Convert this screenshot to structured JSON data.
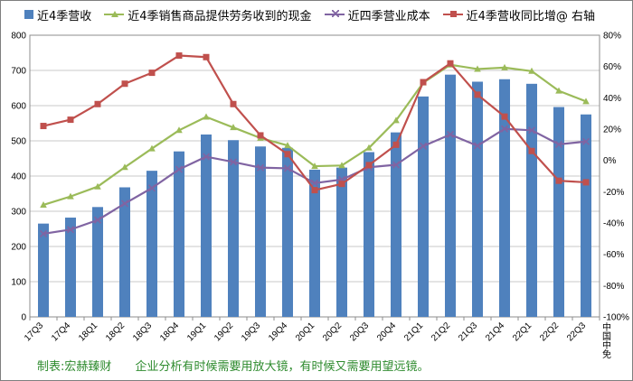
{
  "chart_data": {
    "type": "bar",
    "categories": [
      "17Q3",
      "17Q4",
      "18Q1",
      "18Q2",
      "18Q3",
      "18Q4",
      "19Q1",
      "19Q2",
      "19Q3",
      "19Q4",
      "20Q1",
      "20Q2",
      "20Q3",
      "20Q4",
      "21Q1",
      "21Q2",
      "21Q3",
      "21Q4",
      "22Q1",
      "22Q2",
      "22Q3"
    ],
    "ylim_left": [
      0,
      800
    ],
    "yticks_left": [
      0,
      100,
      200,
      300,
      400,
      500,
      600,
      700,
      800
    ],
    "ylim_right": [
      -100,
      80
    ],
    "yticks_right": [
      "-100%",
      "-80%",
      "-60%",
      "-40%",
      "-20%",
      "0%",
      "20%",
      "40%",
      "60%",
      "80%"
    ],
    "yticks_right_values": [
      -100,
      -80,
      -60,
      -40,
      -20,
      0,
      20,
      40,
      60,
      80
    ],
    "grid": true,
    "legend_position": "top",
    "series": [
      {
        "name": "近4季营收",
        "type": "bar",
        "axis": "left",
        "color": "#4f81bd",
        "values": [
          265,
          282,
          312,
          368,
          415,
          470,
          518,
          502,
          484,
          480,
          418,
          424,
          468,
          524,
          626,
          688,
          668,
          675,
          662,
          596,
          575
        ]
      },
      {
        "name": "近4季销售商品提供劳务收到的现金",
        "type": "line",
        "axis": "left",
        "color": "#9bbb59",
        "marker": "triangle",
        "values": [
          318,
          342,
          370,
          425,
          478,
          530,
          568,
          538,
          508,
          487,
          428,
          430,
          480,
          558,
          665,
          716,
          704,
          708,
          698,
          642,
          612
        ]
      },
      {
        "name": "近四季营业成本",
        "type": "line",
        "axis": "left",
        "color": "#8064a2",
        "marker": "x",
        "values": [
          236,
          248,
          275,
          322,
          366,
          419,
          455,
          440,
          424,
          422,
          380,
          390,
          425,
          432,
          485,
          518,
          486,
          534,
          530,
          490,
          498
        ]
      },
      {
        "name": "近4季营收同比增@ 右轴",
        "type": "line",
        "axis": "right",
        "color": "#c0504d",
        "marker": "square",
        "values": [
          22,
          26,
          36,
          49,
          56,
          67,
          66,
          36,
          16,
          4,
          -19,
          -15,
          -3,
          10,
          50,
          62,
          42,
          28,
          6,
          -13,
          -14
        ]
      }
    ]
  },
  "legend": {
    "items": [
      {
        "label": "近4季营收"
      },
      {
        "label": "近4季销售商品提供劳务收到的现金"
      },
      {
        "label": "近四季营业成本"
      },
      {
        "label": "近4季营收同比增@ 右轴"
      }
    ]
  },
  "source_label": "中国中免",
  "footer": {
    "maker": "制表:宏赫臻财",
    "slogan": "企业分析有时候需要用放大镜，有时候又需要用望远镜。"
  }
}
